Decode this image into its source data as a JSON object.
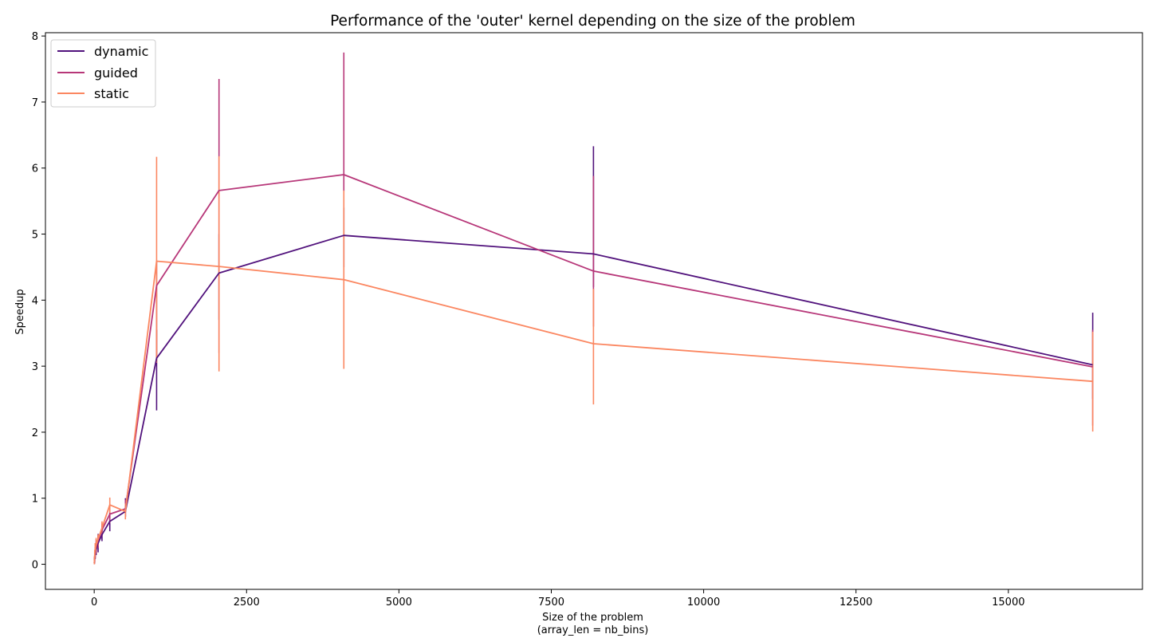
{
  "chart_data": {
    "type": "line",
    "title": "Performance of the 'outer' kernel depending on the size of the problem",
    "xlabel_lines": [
      "Size of the problem",
      "(array_len = nb_bins)"
    ],
    "ylabel": "Speedup",
    "xlim": [
      -800,
      17200
    ],
    "ylim": [
      -0.38,
      8.05
    ],
    "xticks": [
      0,
      2500,
      5000,
      7500,
      10000,
      12500,
      15000
    ],
    "yticks": [
      0,
      1,
      2,
      3,
      4,
      5,
      6,
      7,
      8
    ],
    "grid": false,
    "legend_position": "top-left",
    "series": [
      {
        "name": "dynamic",
        "color": "#51127c",
        "points": [
          {
            "x": 2,
            "y": 0.02,
            "lo": 0.0,
            "hi": 0.05
          },
          {
            "x": 4,
            "y": 0.04,
            "lo": 0.01,
            "hi": 0.08
          },
          {
            "x": 8,
            "y": 0.08,
            "lo": 0.03,
            "hi": 0.14
          },
          {
            "x": 16,
            "y": 0.14,
            "lo": 0.08,
            "hi": 0.22
          },
          {
            "x": 32,
            "y": 0.22,
            "lo": 0.14,
            "hi": 0.34
          },
          {
            "x": 64,
            "y": 0.32,
            "lo": 0.18,
            "hi": 0.46
          },
          {
            "x": 128,
            "y": 0.45,
            "lo": 0.35,
            "hi": 0.58
          },
          {
            "x": 256,
            "y": 0.65,
            "lo": 0.5,
            "hi": 0.78
          },
          {
            "x": 512,
            "y": 0.8,
            "lo": 0.72,
            "hi": 1.0
          },
          {
            "x": 1024,
            "y": 3.12,
            "lo": 2.33,
            "hi": 3.55
          },
          {
            "x": 2048,
            "y": 4.41,
            "lo": 3.7,
            "hi": 5.0
          },
          {
            "x": 4096,
            "y": 4.98,
            "lo": 4.5,
            "hi": 5.4
          },
          {
            "x": 8192,
            "y": 4.7,
            "lo": 4.2,
            "hi": 6.33
          },
          {
            "x": 16384,
            "y": 3.02,
            "lo": 2.5,
            "hi": 3.81
          }
        ]
      },
      {
        "name": "guided",
        "color": "#b73779",
        "points": [
          {
            "x": 2,
            "y": 0.02,
            "lo": 0.0,
            "hi": 0.05
          },
          {
            "x": 4,
            "y": 0.05,
            "lo": 0.01,
            "hi": 0.1
          },
          {
            "x": 8,
            "y": 0.1,
            "lo": 0.04,
            "hi": 0.18
          },
          {
            "x": 16,
            "y": 0.17,
            "lo": 0.09,
            "hi": 0.26
          },
          {
            "x": 32,
            "y": 0.27,
            "lo": 0.16,
            "hi": 0.38
          },
          {
            "x": 64,
            "y": 0.36,
            "lo": 0.25,
            "hi": 0.45
          },
          {
            "x": 128,
            "y": 0.52,
            "lo": 0.42,
            "hi": 0.62
          },
          {
            "x": 256,
            "y": 0.76,
            "lo": 0.62,
            "hi": 0.9
          },
          {
            "x": 512,
            "y": 0.84,
            "lo": 0.72,
            "hi": 0.98
          },
          {
            "x": 1024,
            "y": 4.22,
            "lo": 3.1,
            "hi": 4.6
          },
          {
            "x": 2048,
            "y": 5.66,
            "lo": 3.2,
            "hi": 7.35
          },
          {
            "x": 4096,
            "y": 5.9,
            "lo": 5.65,
            "hi": 7.75
          },
          {
            "x": 8192,
            "y": 4.44,
            "lo": 3.6,
            "hi": 5.88
          },
          {
            "x": 16384,
            "y": 2.99,
            "lo": 2.1,
            "hi": 3.55
          }
        ]
      },
      {
        "name": "static",
        "color": "#fb8761",
        "points": [
          {
            "x": 2,
            "y": 0.02,
            "lo": 0.0,
            "hi": 0.06
          },
          {
            "x": 4,
            "y": 0.06,
            "lo": 0.01,
            "hi": 0.12
          },
          {
            "x": 8,
            "y": 0.12,
            "lo": 0.05,
            "hi": 0.22
          },
          {
            "x": 16,
            "y": 0.2,
            "lo": 0.1,
            "hi": 0.32
          },
          {
            "x": 32,
            "y": 0.3,
            "lo": 0.18,
            "hi": 0.4
          },
          {
            "x": 64,
            "y": 0.38,
            "lo": 0.28,
            "hi": 0.45
          },
          {
            "x": 128,
            "y": 0.55,
            "lo": 0.45,
            "hi": 0.65
          },
          {
            "x": 256,
            "y": 0.9,
            "lo": 0.78,
            "hi": 1.01
          },
          {
            "x": 512,
            "y": 0.8,
            "lo": 0.68,
            "hi": 0.92
          },
          {
            "x": 1024,
            "y": 4.59,
            "lo": 3.05,
            "hi": 6.17
          },
          {
            "x": 2048,
            "y": 4.51,
            "lo": 2.92,
            "hi": 6.18
          },
          {
            "x": 4096,
            "y": 4.31,
            "lo": 2.96,
            "hi": 5.66
          },
          {
            "x": 8192,
            "y": 3.34,
            "lo": 2.42,
            "hi": 4.17
          },
          {
            "x": 16384,
            "y": 2.77,
            "lo": 2.01,
            "hi": 3.52
          }
        ]
      }
    ]
  }
}
